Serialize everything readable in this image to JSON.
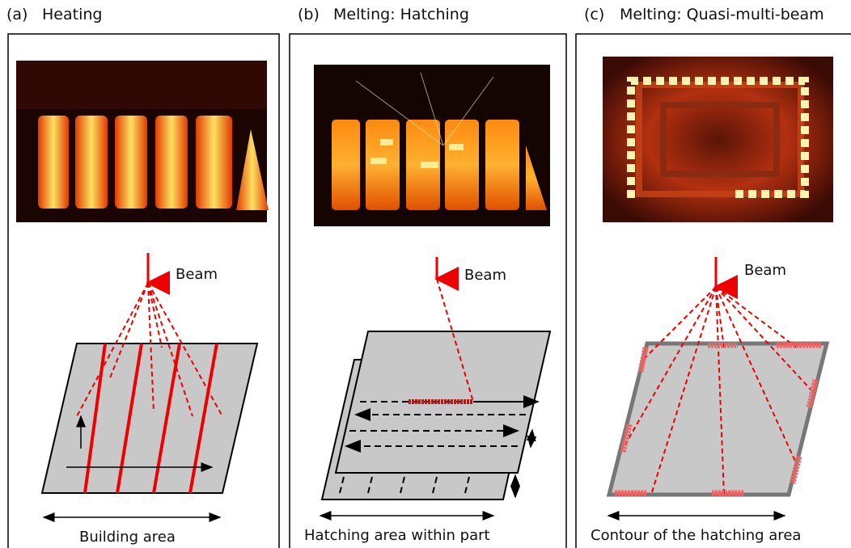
{
  "panels": [
    {
      "label": "(a)",
      "title": "Heating",
      "beam": "Beam",
      "caption": "Building area"
    },
    {
      "label": "(b)",
      "title": "Melting: Hatching",
      "beam": "Beam",
      "caption": "Hatching area within part"
    },
    {
      "label": "(c)",
      "title": "Melting: Quasi-multi-beam",
      "beam": "Beam",
      "caption": "Contour of the hatching area"
    }
  ]
}
